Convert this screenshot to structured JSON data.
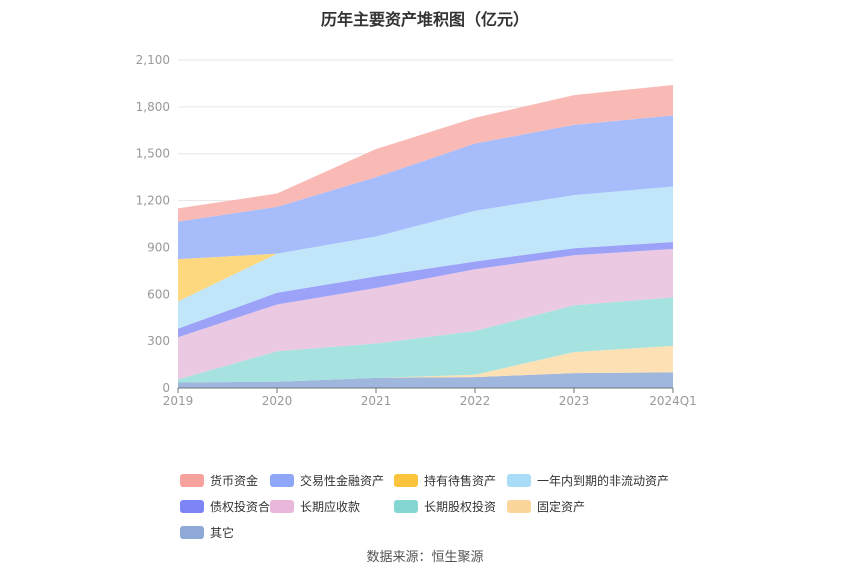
{
  "chart_data": {
    "type": "area",
    "stacked": true,
    "title": "历年主要资产堆积图（亿元）",
    "categories": [
      "2019",
      "2020",
      "2021",
      "2022",
      "2023",
      "2024Q1"
    ],
    "ylim": [
      0,
      2100
    ],
    "yticks": [
      "0",
      "300",
      "600",
      "900",
      "1,200",
      "1,500",
      "1,800",
      "2,100"
    ],
    "grid": true,
    "legend_position": "bottom",
    "series": [
      {
        "name": "其它",
        "color": "#9fb7dd",
        "values": [
          35,
          40,
          65,
          70,
          95,
          100
        ]
      },
      {
        "name": "固定资产",
        "color": "#fde0b3",
        "values": [
          0,
          0,
          0,
          15,
          135,
          170
        ]
      },
      {
        "name": "长期股权投资",
        "color": "#a6e3e0",
        "values": [
          20,
          195,
          220,
          280,
          300,
          310
        ]
      },
      {
        "name": "长期应收款",
        "color": "#ecc9e2",
        "values": [
          270,
          300,
          355,
          395,
          320,
          310
        ]
      },
      {
        "name": "债权投资合计",
        "color": "#9ba2f7",
        "values": [
          55,
          75,
          75,
          50,
          45,
          45
        ]
      },
      {
        "name": "一年内到期的非流动资产",
        "color": "#c1e6fa",
        "values": [
          175,
          250,
          255,
          325,
          340,
          355
        ]
      },
      {
        "name": "持有待售资产",
        "color": "#fdd87e",
        "values": [
          270,
          0,
          0,
          0,
          0,
          0
        ]
      },
      {
        "name": "交易性金融资产",
        "color": "#a6bcfb",
        "values": [
          240,
          300,
          380,
          430,
          450,
          455
        ]
      },
      {
        "name": "货币资金",
        "color": "#f9bab6",
        "values": [
          85,
          85,
          180,
          165,
          190,
          195
        ]
      }
    ],
    "legend": [
      {
        "name": "货币资金",
        "color": "#f7a29c"
      },
      {
        "name": "交易性金融资产",
        "color": "#8ea7f9"
      },
      {
        "name": "持有待售资产",
        "color": "#fcc43d"
      },
      {
        "name": "一年内到期的非流动资产",
        "color": "#a9dcf7"
      },
      {
        "name": "债权投资合计",
        "color": "#7d85f6"
      },
      {
        "name": "长期应收款",
        "color": "#e8b7d9"
      },
      {
        "name": "长期股权投资",
        "color": "#84d6d2"
      },
      {
        "name": "固定资产",
        "color": "#fcd59b"
      },
      {
        "name": "其它",
        "color": "#8fa9d6"
      }
    ]
  },
  "source": "数据来源：恒生聚源"
}
